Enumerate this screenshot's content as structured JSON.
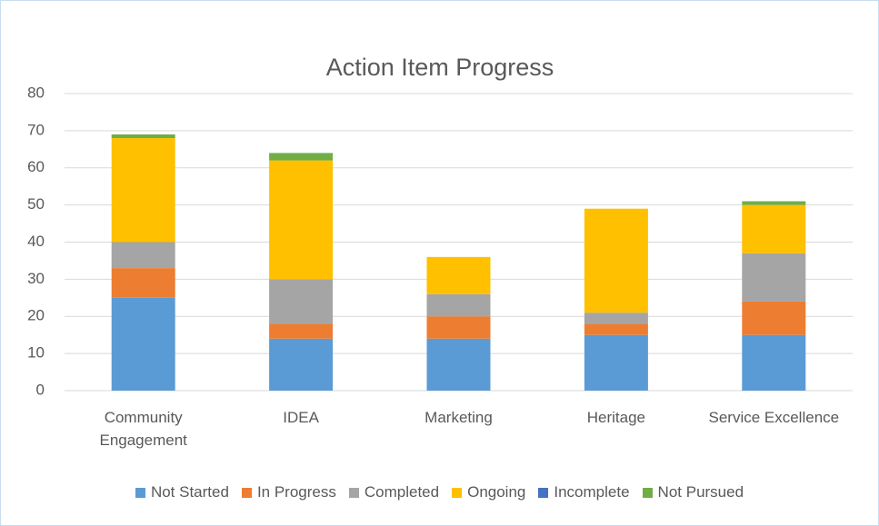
{
  "chart_data": {
    "type": "stacked_bar",
    "title": "Action Item Progress",
    "categories": [
      "Community Engagement",
      "IDEA",
      "Marketing",
      "Heritage",
      "Service Excellence"
    ],
    "series": [
      {
        "name": "Not Started",
        "color": "#5b9bd5",
        "values": [
          25,
          14,
          14,
          15,
          15
        ]
      },
      {
        "name": "In Progress",
        "color": "#ed7d31",
        "values": [
          8,
          4,
          6,
          3,
          9
        ]
      },
      {
        "name": "Completed",
        "color": "#a5a5a5",
        "values": [
          7,
          12,
          6,
          3,
          13
        ]
      },
      {
        "name": "Ongoing",
        "color": "#ffc000",
        "values": [
          28,
          32,
          10,
          28,
          13
        ]
      },
      {
        "name": "Incomplete",
        "color": "#4472c4",
        "values": [
          0,
          0,
          0,
          0,
          0
        ]
      },
      {
        "name": "Not Pursued",
        "color": "#70ad47",
        "values": [
          1,
          2,
          0,
          0,
          1
        ]
      }
    ],
    "ylim": [
      0,
      80
    ],
    "yticks": [
      0,
      10,
      20,
      30,
      40,
      50,
      60,
      70,
      80
    ],
    "grid": true,
    "legend": "bottom"
  }
}
